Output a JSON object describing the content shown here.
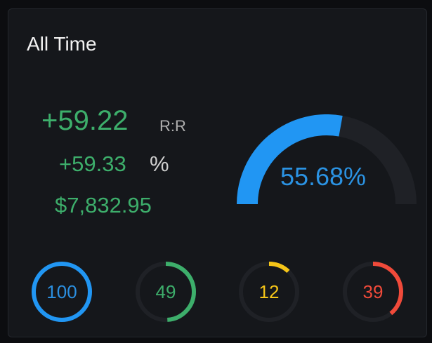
{
  "card": {
    "title": "All Time",
    "reward_risk": {
      "value": "+59.22",
      "label": "R:R"
    },
    "percent": {
      "value": "+59.33",
      "sign": "%"
    },
    "money": "$7,832.95"
  },
  "gauge": {
    "text": "55.68%",
    "fraction": 0.5568,
    "color": "#2196f3",
    "track_color": "#1f2126"
  },
  "rings": [
    {
      "name": "ring-blue",
      "value": "100",
      "fraction": 1.0,
      "color": "#2196f3",
      "text_color": "#2b8fe0"
    },
    {
      "name": "ring-green",
      "value": "49",
      "fraction": 0.49,
      "color": "#3dae6b",
      "text_color": "#3dae6b"
    },
    {
      "name": "ring-yellow",
      "value": "12",
      "fraction": 0.12,
      "color": "#f5c518",
      "text_color": "#f5c518"
    },
    {
      "name": "ring-red",
      "value": "39",
      "fraction": 0.39,
      "color": "#f04a3a",
      "text_color": "#f04a3a"
    }
  ],
  "colors": {
    "positive": "#3dae6b",
    "track": "#1f2126"
  }
}
